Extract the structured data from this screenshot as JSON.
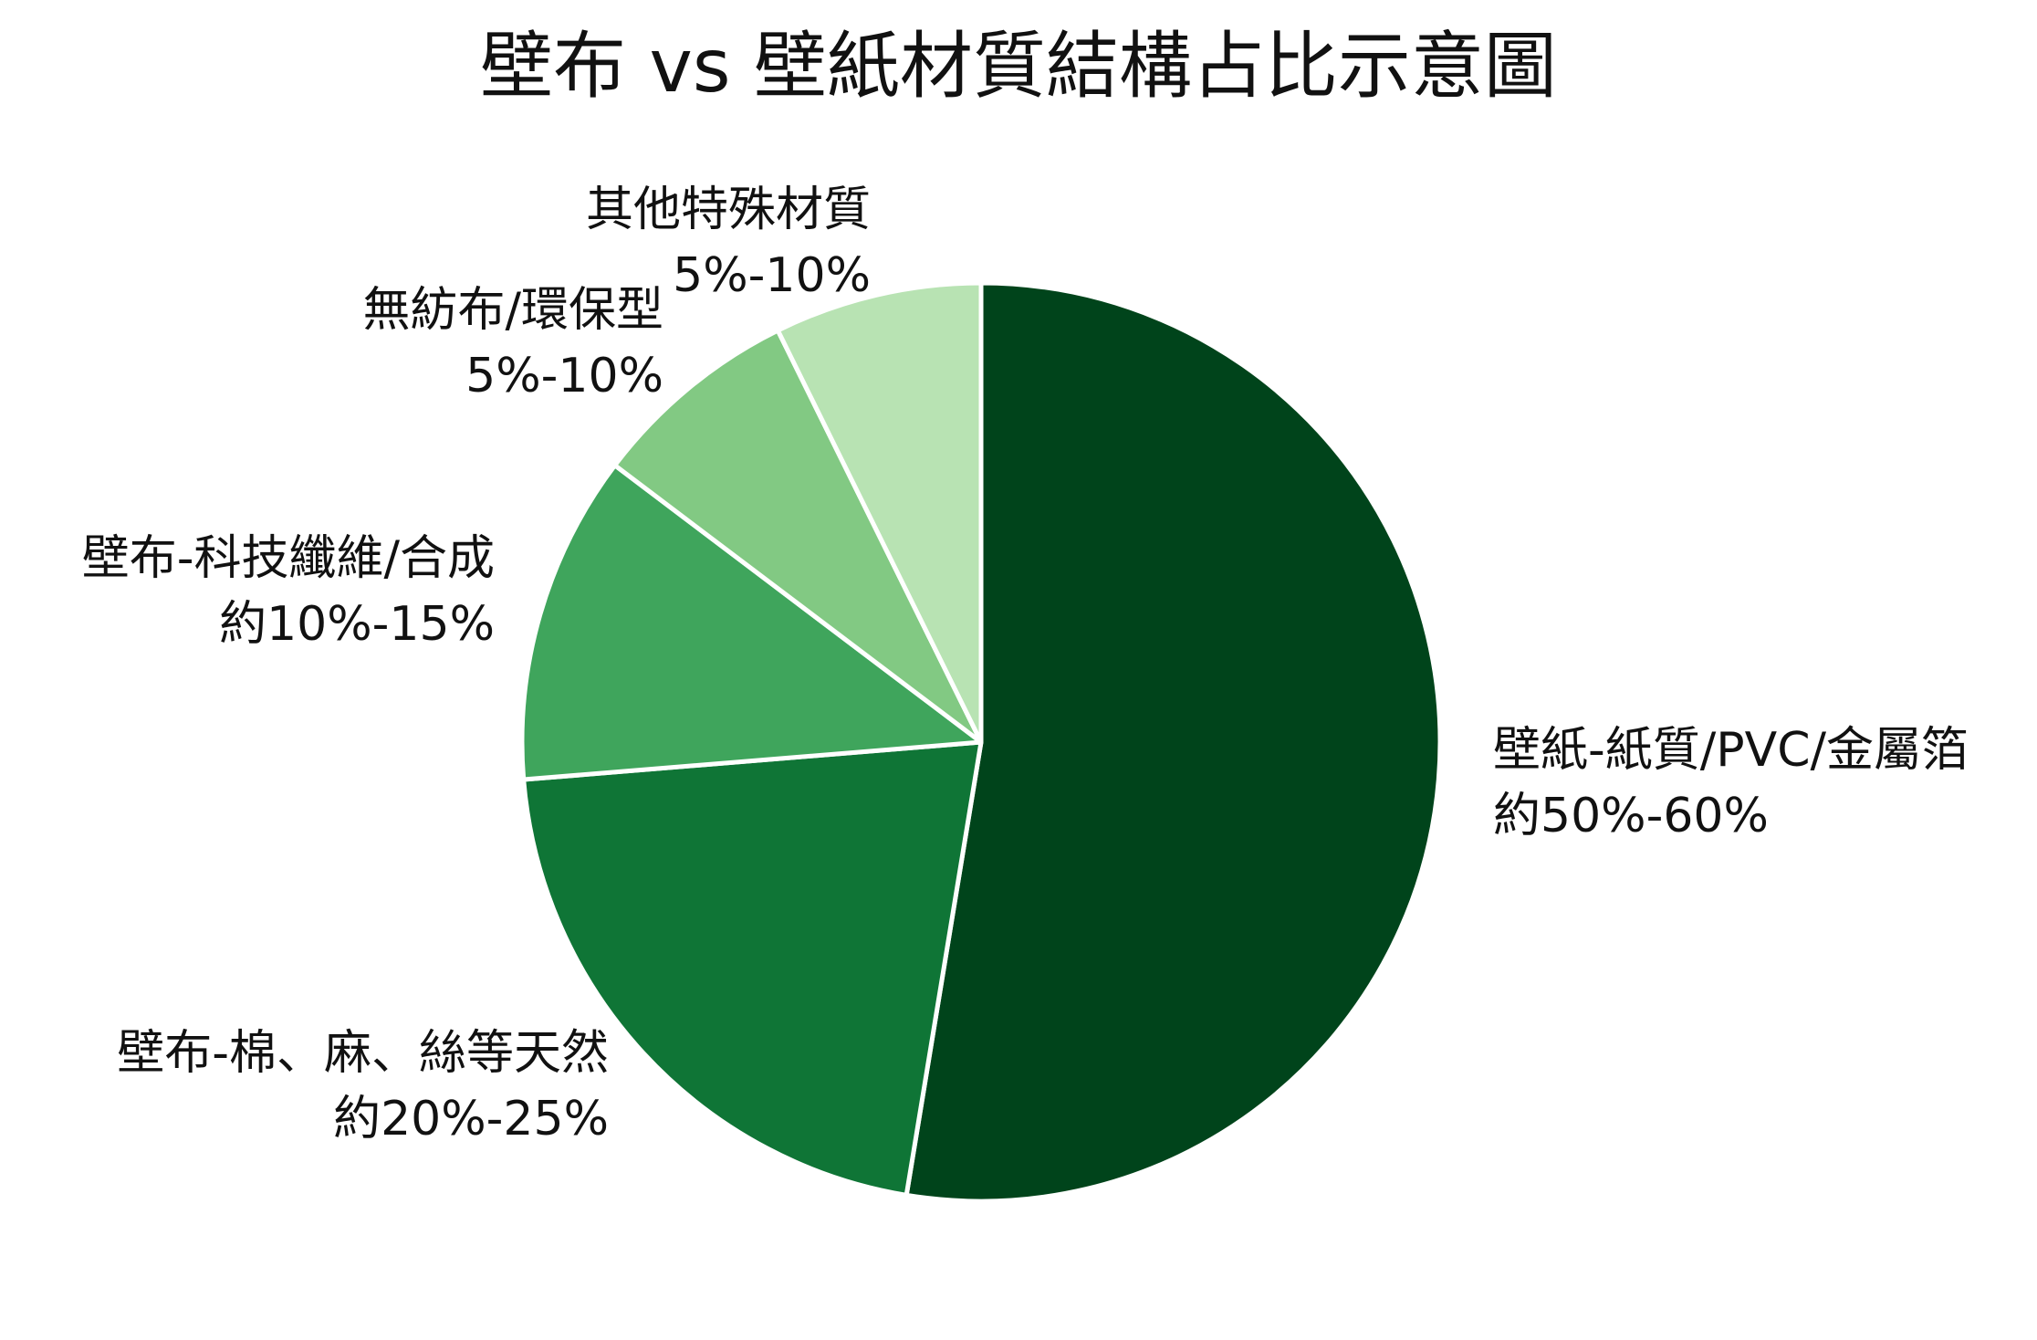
{
  "chart_data": {
    "type": "pie",
    "title": "壁布 vs 壁紙材質結構占比示意圖",
    "start_angle": "12 o'clock",
    "direction": "clockwise",
    "slices": [
      {
        "name": "壁紙-紙質/PVC/金屬箔",
        "range_label": "約50%-60%",
        "value": 52.6,
        "color": "#00441b"
      },
      {
        "name": "壁布-棉、麻、絲等天然",
        "range_label": "約20%-25%",
        "value": 21.1,
        "color": "#0f7536"
      },
      {
        "name": "壁布-科技纖維/合成",
        "range_label": "約10%-15%",
        "value": 11.6,
        "color": "#3fa55c"
      },
      {
        "name": "無紡布/環保型",
        "range_label": "5%-10%",
        "value": 7.4,
        "color": "#82c983"
      },
      {
        "name": "其他特殊材質",
        "range_label": "5%-10%",
        "value": 7.3,
        "color": "#b8e3b3"
      }
    ]
  }
}
